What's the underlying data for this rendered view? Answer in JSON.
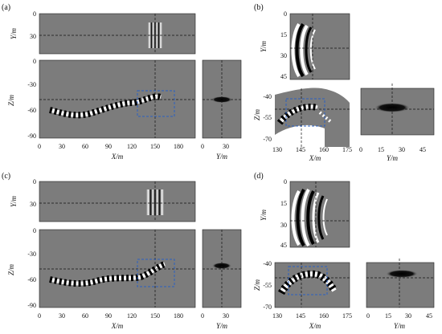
{
  "colors": {
    "background_gray": "#7c7c7c",
    "roi_box": "#2a5fc2",
    "crosshair": "#111111"
  },
  "panels": [
    {
      "label": "(a)",
      "top": {
        "ylabel": "Y/m",
        "yticks": [
          "0",
          "30"
        ]
      },
      "main": {
        "ylabel": "Z/m",
        "yticks": [
          "0",
          "-30",
          "-60",
          "-90"
        ],
        "xlabel": "X/m",
        "xticks": [
          "0",
          "30",
          "60",
          "90",
          "120",
          "150",
          "180"
        ]
      },
      "side": {
        "xlabel": "Y/m",
        "xticks": [
          "0",
          "30"
        ]
      }
    },
    {
      "label": "(b)",
      "top": {
        "ylabel": "Y/m",
        "yticks": [
          "0",
          "15",
          "30",
          "45"
        ]
      },
      "main": {
        "ylabel": "Z/m",
        "yticks": [
          "-40",
          "-55",
          "-70"
        ],
        "xlabel": "X/m",
        "xticks": [
          "130",
          "145",
          "160",
          "175"
        ]
      },
      "side": {
        "xlabel": "Y/m",
        "xticks": [
          "0",
          "15",
          "30",
          "45"
        ]
      }
    },
    {
      "label": "(c)",
      "top": {
        "ylabel": "Y/m",
        "yticks": [
          "0",
          "30"
        ]
      },
      "main": {
        "ylabel": "Z/m",
        "yticks": [
          "0",
          "-30",
          "-60",
          "-90"
        ],
        "xlabel": "X/m",
        "xticks": [
          "0",
          "30",
          "60",
          "90",
          "120",
          "150",
          "180"
        ]
      },
      "side": {
        "xlabel": "Y/m",
        "xticks": [
          "0",
          "30"
        ]
      }
    },
    {
      "label": "(d)",
      "top": {
        "ylabel": "Y/m",
        "yticks": [
          "0",
          "15",
          "30",
          "45"
        ]
      },
      "main": {
        "ylabel": "Z/m",
        "yticks": [
          "-40",
          "-55",
          "-70"
        ],
        "xlabel": "X/m",
        "xticks": [
          "130",
          "145",
          "160",
          "175"
        ]
      },
      "side": {
        "xlabel": "Y/m",
        "xticks": [
          "0",
          "15",
          "30",
          "45"
        ]
      }
    }
  ]
}
